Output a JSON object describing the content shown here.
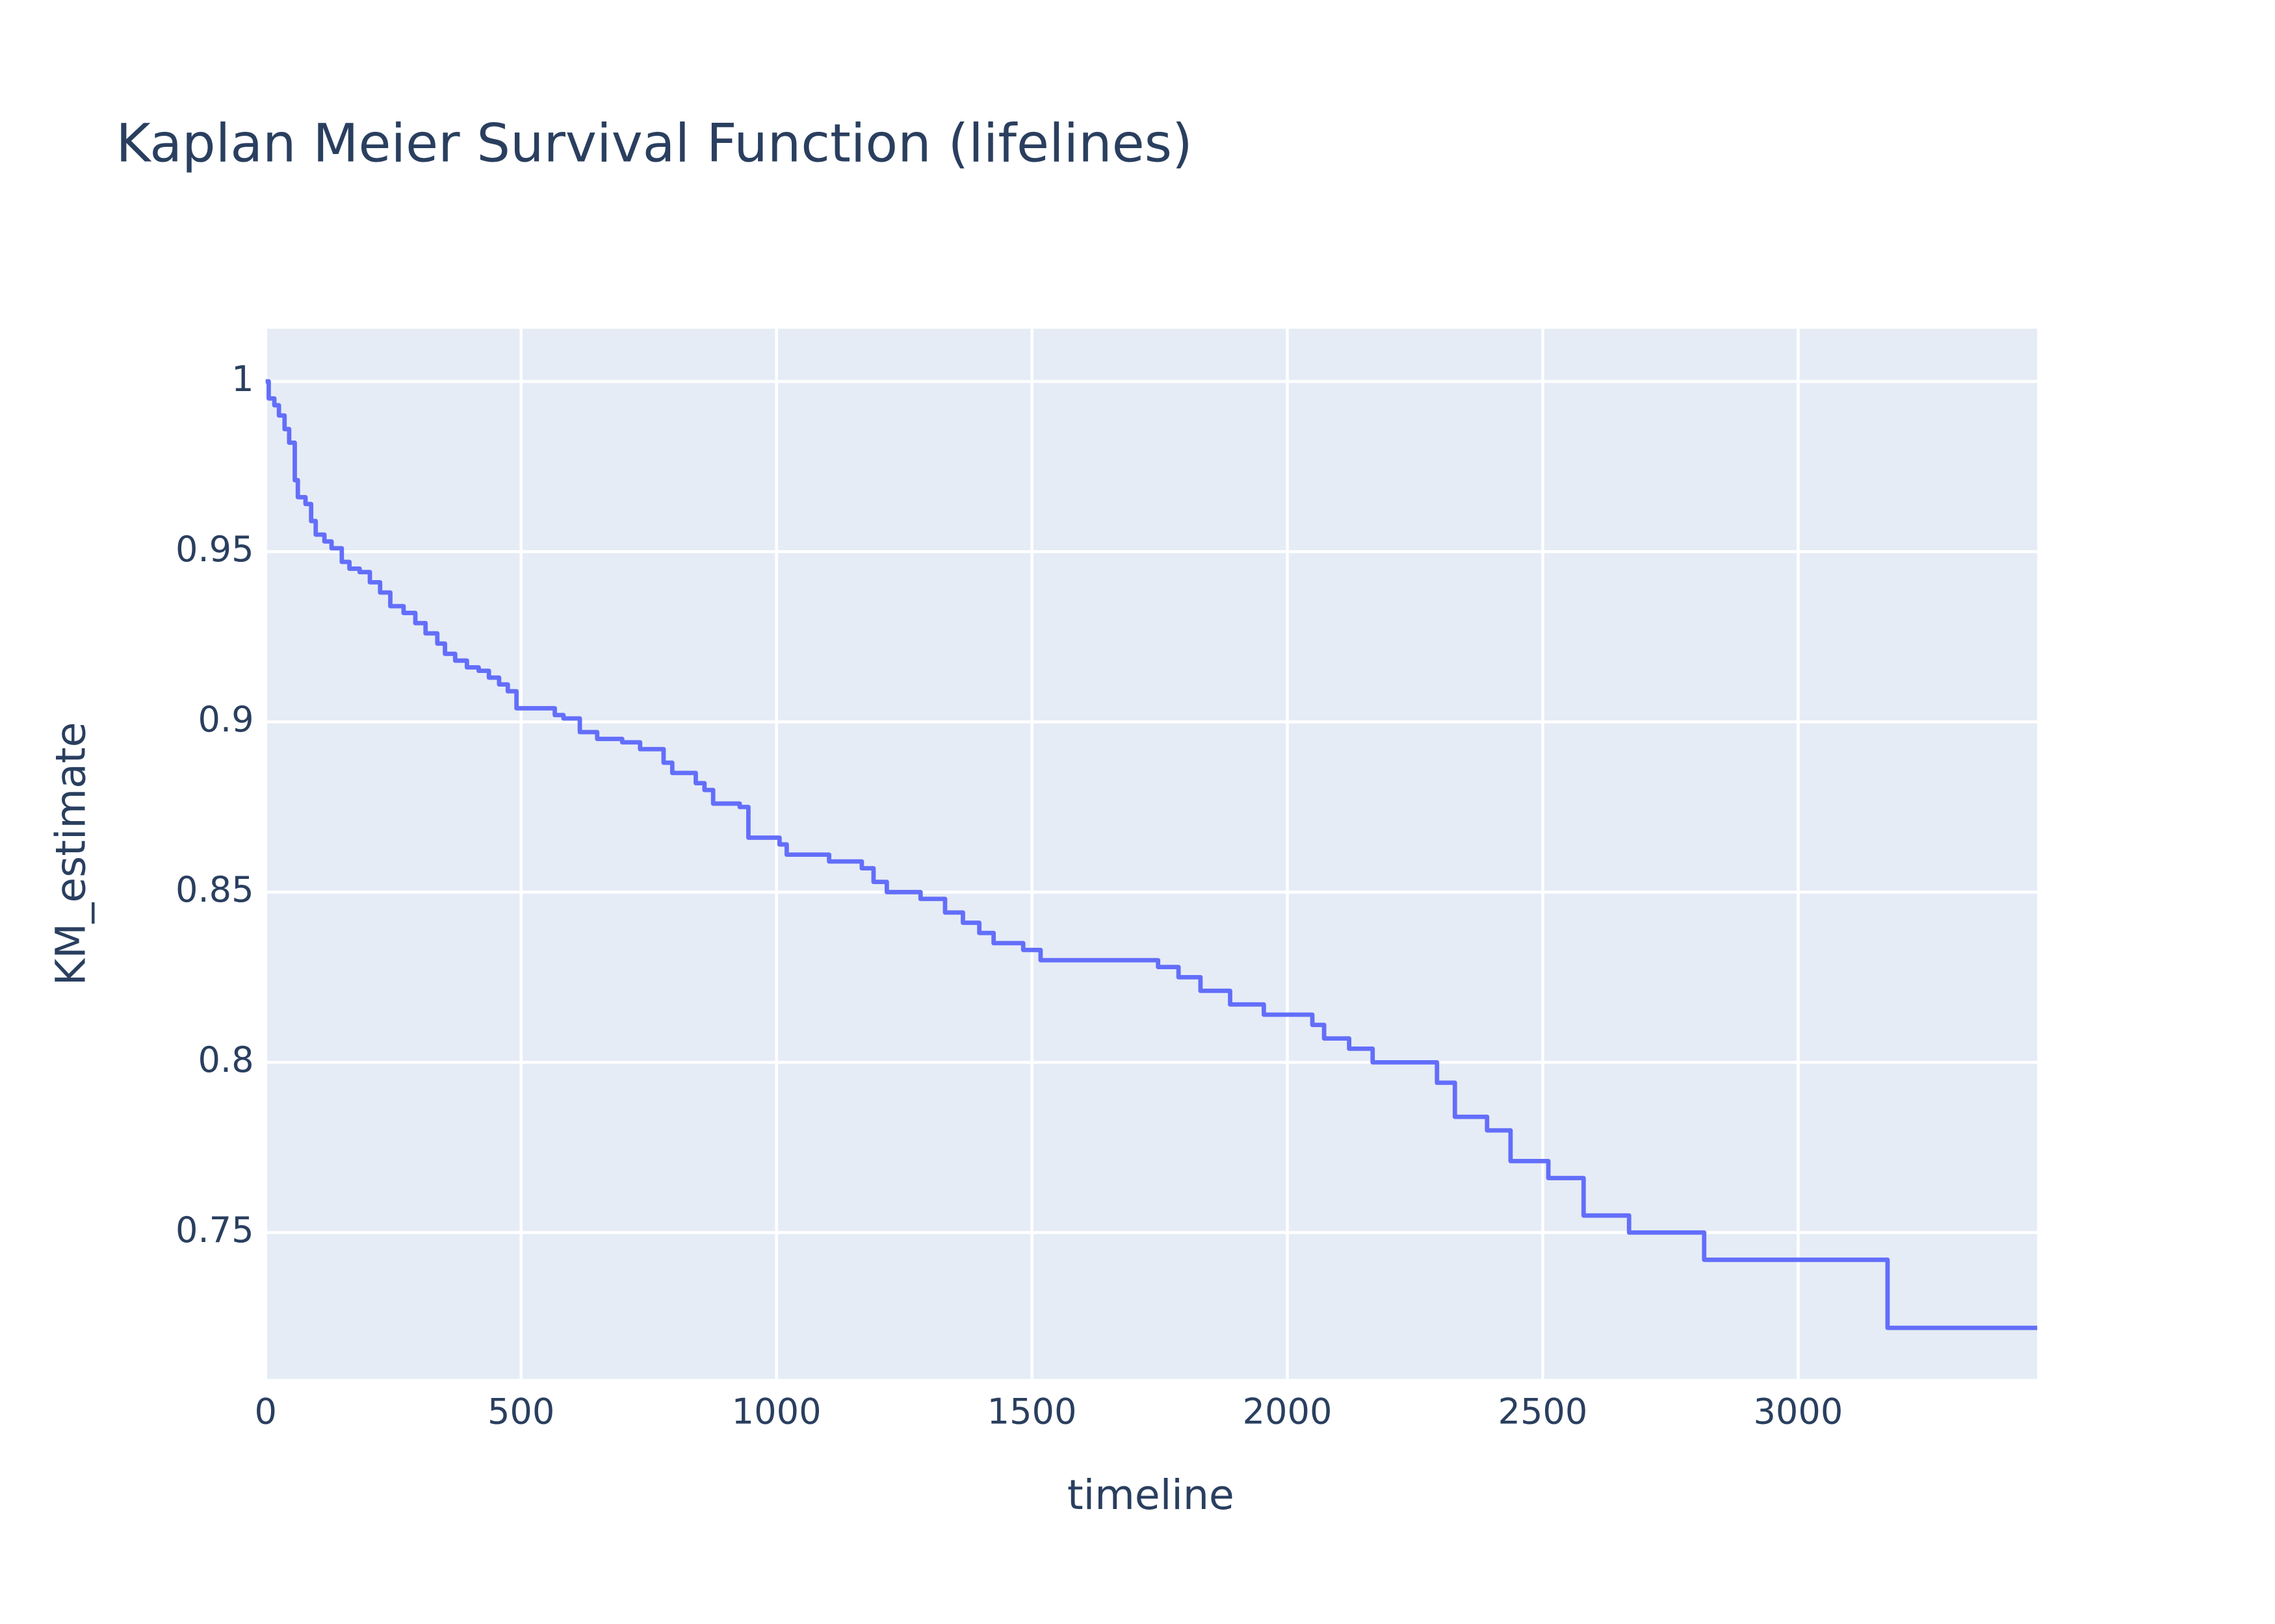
{
  "chart_data": {
    "type": "line",
    "title": "Kaplan Meier Survival Function (lifelines)",
    "x_label": "timeline",
    "y_label": "KM_estimate",
    "line_shape": "hv",
    "grid": true,
    "background": "#e5ecf6",
    "series": [
      {
        "name": "KM_estimate",
        "color": "#636efa",
        "x": [
          0,
          6,
          17,
          26,
          37,
          46,
          57,
          63,
          78,
          89,
          98,
          115,
          129,
          149,
          164,
          184,
          204,
          224,
          244,
          270,
          293,
          313,
          336,
          351,
          371,
          394,
          417,
          437,
          457,
          474,
          491,
          566,
          583,
          615,
          649,
          698,
          733,
          779,
          796,
          842,
          859,
          876,
          928,
          945,
          1006,
          1020,
          1103,
          1167,
          1190,
          1216,
          1282,
          1330,
          1365,
          1397,
          1425,
          1483,
          1517,
          1747,
          1787,
          1830,
          1888,
          1954,
          2049,
          2072,
          2121,
          2167,
          2293,
          2328,
          2391,
          2437,
          2511,
          2580,
          2669,
          2816,
          3175,
          3468
        ],
        "values": [
          1.0,
          0.995,
          0.993,
          0.99,
          0.986,
          0.982,
          0.971,
          0.966,
          0.964,
          0.959,
          0.955,
          0.953,
          0.951,
          0.947,
          0.945,
          0.944,
          0.941,
          0.938,
          0.934,
          0.932,
          0.929,
          0.926,
          0.923,
          0.92,
          0.918,
          0.916,
          0.915,
          0.913,
          0.911,
          0.909,
          0.904,
          0.902,
          0.901,
          0.897,
          0.895,
          0.894,
          0.892,
          0.888,
          0.885,
          0.882,
          0.88,
          0.876,
          0.875,
          0.866,
          0.864,
          0.861,
          0.859,
          0.857,
          0.853,
          0.85,
          0.848,
          0.844,
          0.841,
          0.838,
          0.835,
          0.833,
          0.83,
          0.828,
          0.825,
          0.821,
          0.817,
          0.814,
          0.811,
          0.807,
          0.804,
          0.8,
          0.794,
          0.784,
          0.78,
          0.771,
          0.766,
          0.755,
          0.75,
          0.742,
          0.722,
          0.722
        ]
      }
    ],
    "xlim": [
      0,
      3468
    ],
    "xticks": [
      0,
      500,
      1000,
      1500,
      2000,
      2500,
      3000
    ],
    "ylim": [
      0.707,
      1.0155
    ],
    "yticks": [
      0.75,
      0.8,
      0.85,
      0.9,
      0.95,
      1
    ]
  }
}
